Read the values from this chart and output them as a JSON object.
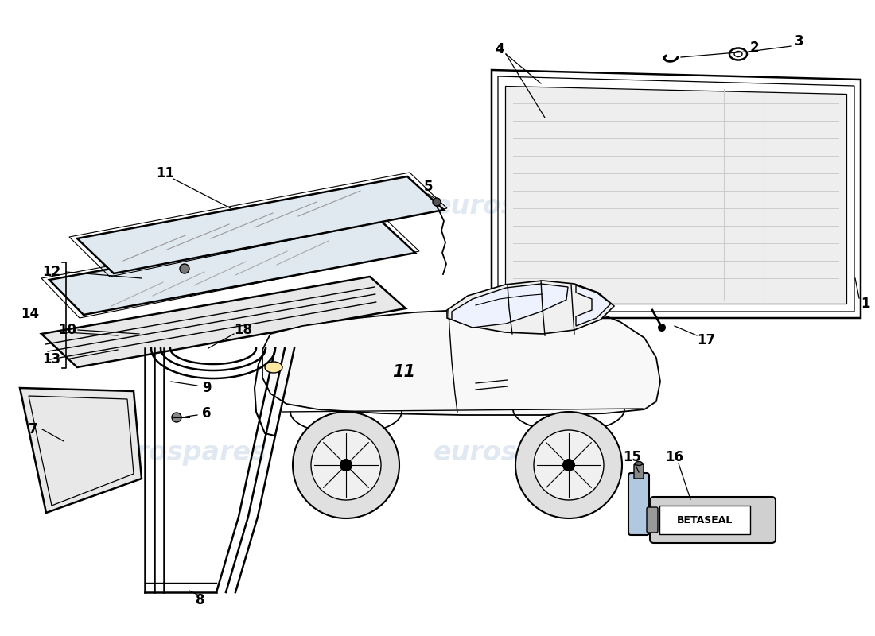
{
  "background_color": "#ffffff",
  "watermark_text": "eurospares",
  "watermark_color": "#c8d8e8",
  "line_color": "#000000",
  "label_color": "#000000",
  "label_fontsize": 12,
  "betaseal_label": "BETASEAL"
}
